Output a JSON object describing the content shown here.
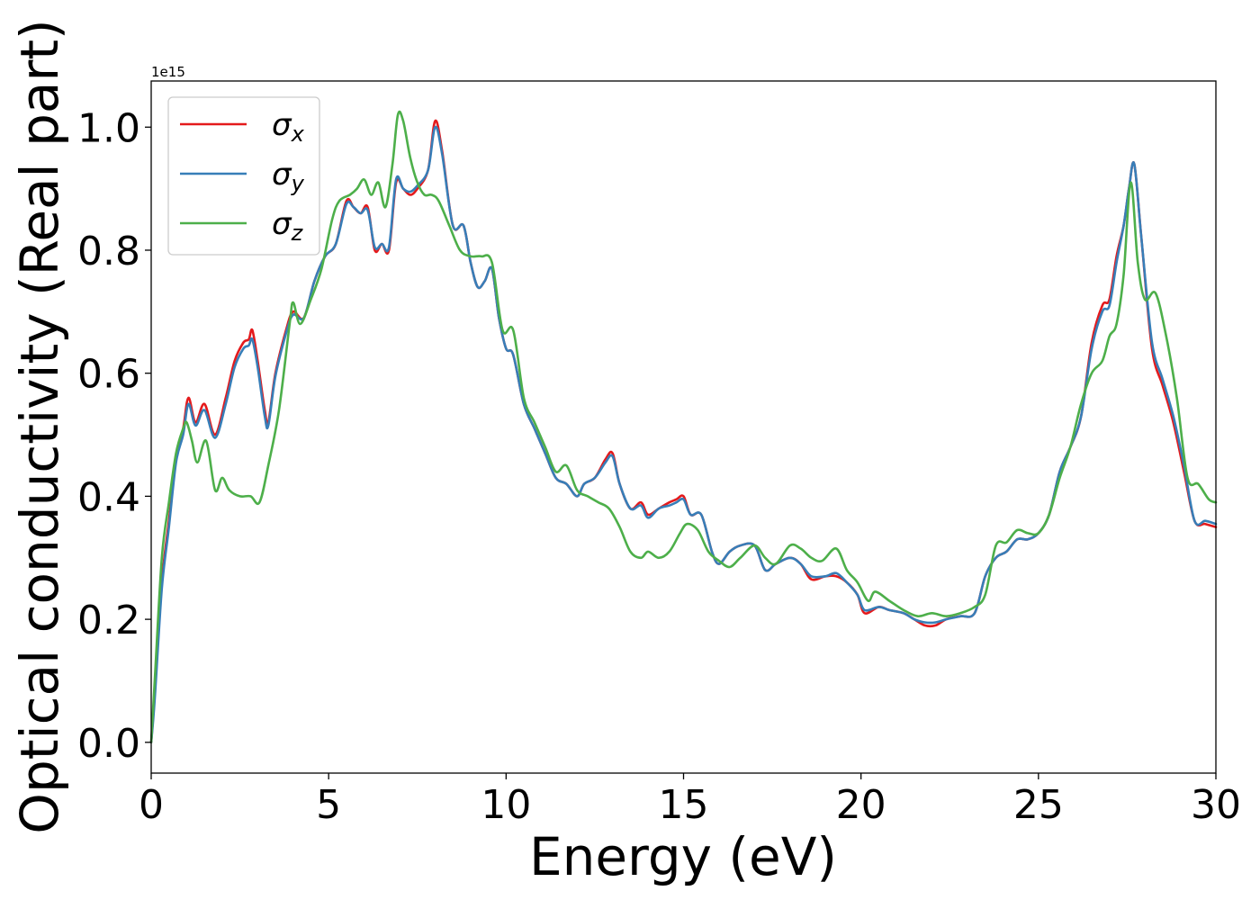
{
  "chart_data": {
    "type": "line",
    "xlabel": "Energy (eV)",
    "ylabel": "Optical conductivity (Real part)",
    "y_offset_label": "1e15",
    "xlim": [
      0,
      30
    ],
    "ylim": [
      -0.05,
      1.075
    ],
    "x_ticks": [
      0,
      5,
      10,
      15,
      20,
      25,
      30
    ],
    "x_tick_labels": [
      "0",
      "5",
      "10",
      "15",
      "20",
      "25",
      "30"
    ],
    "y_ticks": [
      0.0,
      0.2,
      0.4,
      0.6,
      0.8,
      1.0
    ],
    "y_tick_labels": [
      "0.0",
      "0.2",
      "0.4",
      "0.6",
      "0.8",
      "1.0"
    ],
    "grid": false,
    "legend_position": "upper-left",
    "series": [
      {
        "name": "σx",
        "symbol": "σ",
        "subscript": "x",
        "color": "#e41a1c",
        "x": [
          0.0,
          0.1,
          0.3,
          0.5,
          0.7,
          0.9,
          1.05,
          1.25,
          1.5,
          1.8,
          2.1,
          2.35,
          2.6,
          2.75,
          2.85,
          3.0,
          3.2,
          3.3,
          3.5,
          3.8,
          4.0,
          4.3,
          4.6,
          4.9,
          5.2,
          5.5,
          5.7,
          5.9,
          6.1,
          6.3,
          6.5,
          6.7,
          6.9,
          7.1,
          7.3,
          7.5,
          7.8,
          8.0,
          8.2,
          8.5,
          8.8,
          9.0,
          9.2,
          9.4,
          9.6,
          9.8,
          10.0,
          10.2,
          10.5,
          10.8,
          11.1,
          11.4,
          11.7,
          12.0,
          12.2,
          12.5,
          12.8,
          13.0,
          13.2,
          13.5,
          13.8,
          14.0,
          14.3,
          14.6,
          14.8,
          15.0,
          15.2,
          15.5,
          15.8,
          16.0,
          16.3,
          16.6,
          17.0,
          17.3,
          17.6,
          18.0,
          18.3,
          18.6,
          19.0,
          19.3,
          19.6,
          19.9,
          20.1,
          20.5,
          20.8,
          21.2,
          21.5,
          21.8,
          22.1,
          22.4,
          22.8,
          23.2,
          23.5,
          23.8,
          24.1,
          24.4,
          24.7,
          25.0,
          25.3,
          25.6,
          25.9,
          26.2,
          26.5,
          26.8,
          27.0,
          27.2,
          27.4,
          27.55,
          27.7,
          27.9,
          28.2,
          28.5,
          28.8,
          29.1,
          29.4,
          29.7,
          30.0
        ],
        "y": [
          0.0,
          0.08,
          0.26,
          0.36,
          0.46,
          0.51,
          0.56,
          0.52,
          0.55,
          0.5,
          0.56,
          0.62,
          0.65,
          0.655,
          0.67,
          0.62,
          0.54,
          0.52,
          0.6,
          0.67,
          0.7,
          0.69,
          0.75,
          0.79,
          0.81,
          0.88,
          0.87,
          0.86,
          0.87,
          0.8,
          0.81,
          0.8,
          0.91,
          0.9,
          0.89,
          0.9,
          0.93,
          1.01,
          0.96,
          0.84,
          0.84,
          0.78,
          0.74,
          0.75,
          0.77,
          0.69,
          0.64,
          0.63,
          0.55,
          0.51,
          0.47,
          0.43,
          0.42,
          0.4,
          0.42,
          0.43,
          0.46,
          0.47,
          0.42,
          0.38,
          0.39,
          0.37,
          0.38,
          0.39,
          0.395,
          0.4,
          0.37,
          0.37,
          0.31,
          0.29,
          0.31,
          0.32,
          0.32,
          0.28,
          0.29,
          0.3,
          0.29,
          0.265,
          0.27,
          0.27,
          0.26,
          0.24,
          0.21,
          0.22,
          0.215,
          0.21,
          0.2,
          0.19,
          0.19,
          0.2,
          0.205,
          0.21,
          0.27,
          0.3,
          0.31,
          0.33,
          0.33,
          0.34,
          0.37,
          0.44,
          0.48,
          0.53,
          0.65,
          0.71,
          0.72,
          0.79,
          0.84,
          0.9,
          0.94,
          0.82,
          0.64,
          0.58,
          0.52,
          0.44,
          0.36,
          0.355,
          0.35
        ]
      },
      {
        "name": "σy",
        "symbol": "σ",
        "subscript": "y",
        "color": "#377eb8",
        "x": [
          0.0,
          0.1,
          0.3,
          0.5,
          0.7,
          0.9,
          1.05,
          1.25,
          1.5,
          1.8,
          2.1,
          2.35,
          2.6,
          2.75,
          2.85,
          3.0,
          3.2,
          3.3,
          3.5,
          3.8,
          4.0,
          4.3,
          4.6,
          4.9,
          5.2,
          5.5,
          5.7,
          5.9,
          6.1,
          6.3,
          6.5,
          6.7,
          6.9,
          7.1,
          7.3,
          7.5,
          7.8,
          8.0,
          8.2,
          8.5,
          8.8,
          9.0,
          9.2,
          9.4,
          9.6,
          9.8,
          10.0,
          10.2,
          10.5,
          10.8,
          11.1,
          11.4,
          11.7,
          12.0,
          12.2,
          12.5,
          12.8,
          13.0,
          13.2,
          13.5,
          13.8,
          14.0,
          14.3,
          14.6,
          14.8,
          15.0,
          15.2,
          15.5,
          15.8,
          16.0,
          16.3,
          16.6,
          17.0,
          17.3,
          17.6,
          18.0,
          18.3,
          18.6,
          19.0,
          19.3,
          19.6,
          19.9,
          20.1,
          20.5,
          20.8,
          21.2,
          21.5,
          21.8,
          22.1,
          22.4,
          22.8,
          23.2,
          23.5,
          23.8,
          24.1,
          24.4,
          24.7,
          25.0,
          25.3,
          25.6,
          25.9,
          26.2,
          26.5,
          26.8,
          27.0,
          27.2,
          27.4,
          27.55,
          27.7,
          27.9,
          28.2,
          28.5,
          28.8,
          29.1,
          29.4,
          29.7,
          30.0
        ],
        "y": [
          0.0,
          0.07,
          0.25,
          0.35,
          0.455,
          0.5,
          0.55,
          0.515,
          0.54,
          0.495,
          0.55,
          0.61,
          0.64,
          0.645,
          0.655,
          0.61,
          0.53,
          0.515,
          0.595,
          0.665,
          0.695,
          0.69,
          0.75,
          0.79,
          0.81,
          0.875,
          0.87,
          0.86,
          0.865,
          0.805,
          0.81,
          0.805,
          0.915,
          0.9,
          0.895,
          0.905,
          0.93,
          1.0,
          0.955,
          0.84,
          0.84,
          0.78,
          0.74,
          0.75,
          0.77,
          0.69,
          0.64,
          0.63,
          0.55,
          0.51,
          0.47,
          0.43,
          0.42,
          0.4,
          0.42,
          0.43,
          0.455,
          0.465,
          0.42,
          0.38,
          0.385,
          0.365,
          0.38,
          0.385,
          0.39,
          0.395,
          0.37,
          0.37,
          0.31,
          0.29,
          0.31,
          0.32,
          0.32,
          0.28,
          0.29,
          0.3,
          0.29,
          0.27,
          0.27,
          0.275,
          0.26,
          0.24,
          0.215,
          0.22,
          0.215,
          0.21,
          0.2,
          0.195,
          0.195,
          0.2,
          0.205,
          0.21,
          0.27,
          0.3,
          0.31,
          0.33,
          0.33,
          0.34,
          0.37,
          0.44,
          0.48,
          0.53,
          0.64,
          0.7,
          0.71,
          0.78,
          0.84,
          0.9,
          0.94,
          0.82,
          0.65,
          0.59,
          0.53,
          0.45,
          0.36,
          0.36,
          0.355
        ]
      },
      {
        "name": "σz",
        "symbol": "σ",
        "subscript": "z",
        "color": "#4daf4a",
        "x": [
          0.0,
          0.1,
          0.3,
          0.5,
          0.7,
          0.9,
          1.0,
          1.15,
          1.3,
          1.55,
          1.8,
          2.0,
          2.2,
          2.5,
          2.8,
          3.05,
          3.3,
          3.6,
          3.9,
          4.0,
          4.2,
          4.5,
          4.8,
          5.1,
          5.3,
          5.6,
          5.8,
          6.0,
          6.2,
          6.4,
          6.6,
          6.8,
          6.95,
          7.1,
          7.3,
          7.5,
          7.7,
          7.9,
          8.1,
          8.4,
          8.7,
          9.0,
          9.3,
          9.6,
          9.9,
          10.2,
          10.5,
          10.8,
          11.1,
          11.4,
          11.7,
          12.0,
          12.3,
          12.6,
          12.9,
          13.2,
          13.5,
          13.8,
          14.0,
          14.3,
          14.6,
          14.9,
          15.1,
          15.4,
          15.7,
          16.0,
          16.3,
          16.6,
          17.0,
          17.3,
          17.6,
          18.0,
          18.3,
          18.6,
          18.9,
          19.3,
          19.6,
          19.9,
          20.2,
          20.4,
          20.8,
          21.2,
          21.6,
          22.0,
          22.4,
          22.8,
          23.2,
          23.5,
          23.8,
          24.1,
          24.4,
          24.7,
          25.0,
          25.3,
          25.6,
          25.9,
          26.2,
          26.5,
          26.8,
          27.0,
          27.2,
          27.4,
          27.6,
          27.8,
          28.0,
          28.3,
          28.6,
          28.9,
          29.2,
          29.5,
          29.8,
          30.0
        ],
        "y": [
          0.0,
          0.1,
          0.3,
          0.39,
          0.47,
          0.51,
          0.52,
          0.49,
          0.455,
          0.49,
          0.41,
          0.43,
          0.41,
          0.4,
          0.4,
          0.39,
          0.45,
          0.54,
          0.68,
          0.715,
          0.68,
          0.72,
          0.77,
          0.85,
          0.88,
          0.89,
          0.9,
          0.915,
          0.89,
          0.91,
          0.87,
          0.94,
          1.02,
          1.01,
          0.95,
          0.91,
          0.89,
          0.89,
          0.88,
          0.84,
          0.8,
          0.79,
          0.79,
          0.78,
          0.67,
          0.67,
          0.56,
          0.52,
          0.48,
          0.44,
          0.45,
          0.41,
          0.4,
          0.39,
          0.38,
          0.35,
          0.31,
          0.3,
          0.31,
          0.3,
          0.31,
          0.34,
          0.355,
          0.345,
          0.31,
          0.295,
          0.285,
          0.3,
          0.32,
          0.3,
          0.29,
          0.32,
          0.315,
          0.3,
          0.295,
          0.315,
          0.28,
          0.26,
          0.23,
          0.245,
          0.23,
          0.215,
          0.205,
          0.21,
          0.205,
          0.21,
          0.22,
          0.24,
          0.32,
          0.325,
          0.345,
          0.34,
          0.34,
          0.37,
          0.43,
          0.48,
          0.55,
          0.6,
          0.62,
          0.66,
          0.68,
          0.76,
          0.91,
          0.78,
          0.72,
          0.73,
          0.66,
          0.56,
          0.43,
          0.42,
          0.395,
          0.39
        ]
      }
    ]
  }
}
